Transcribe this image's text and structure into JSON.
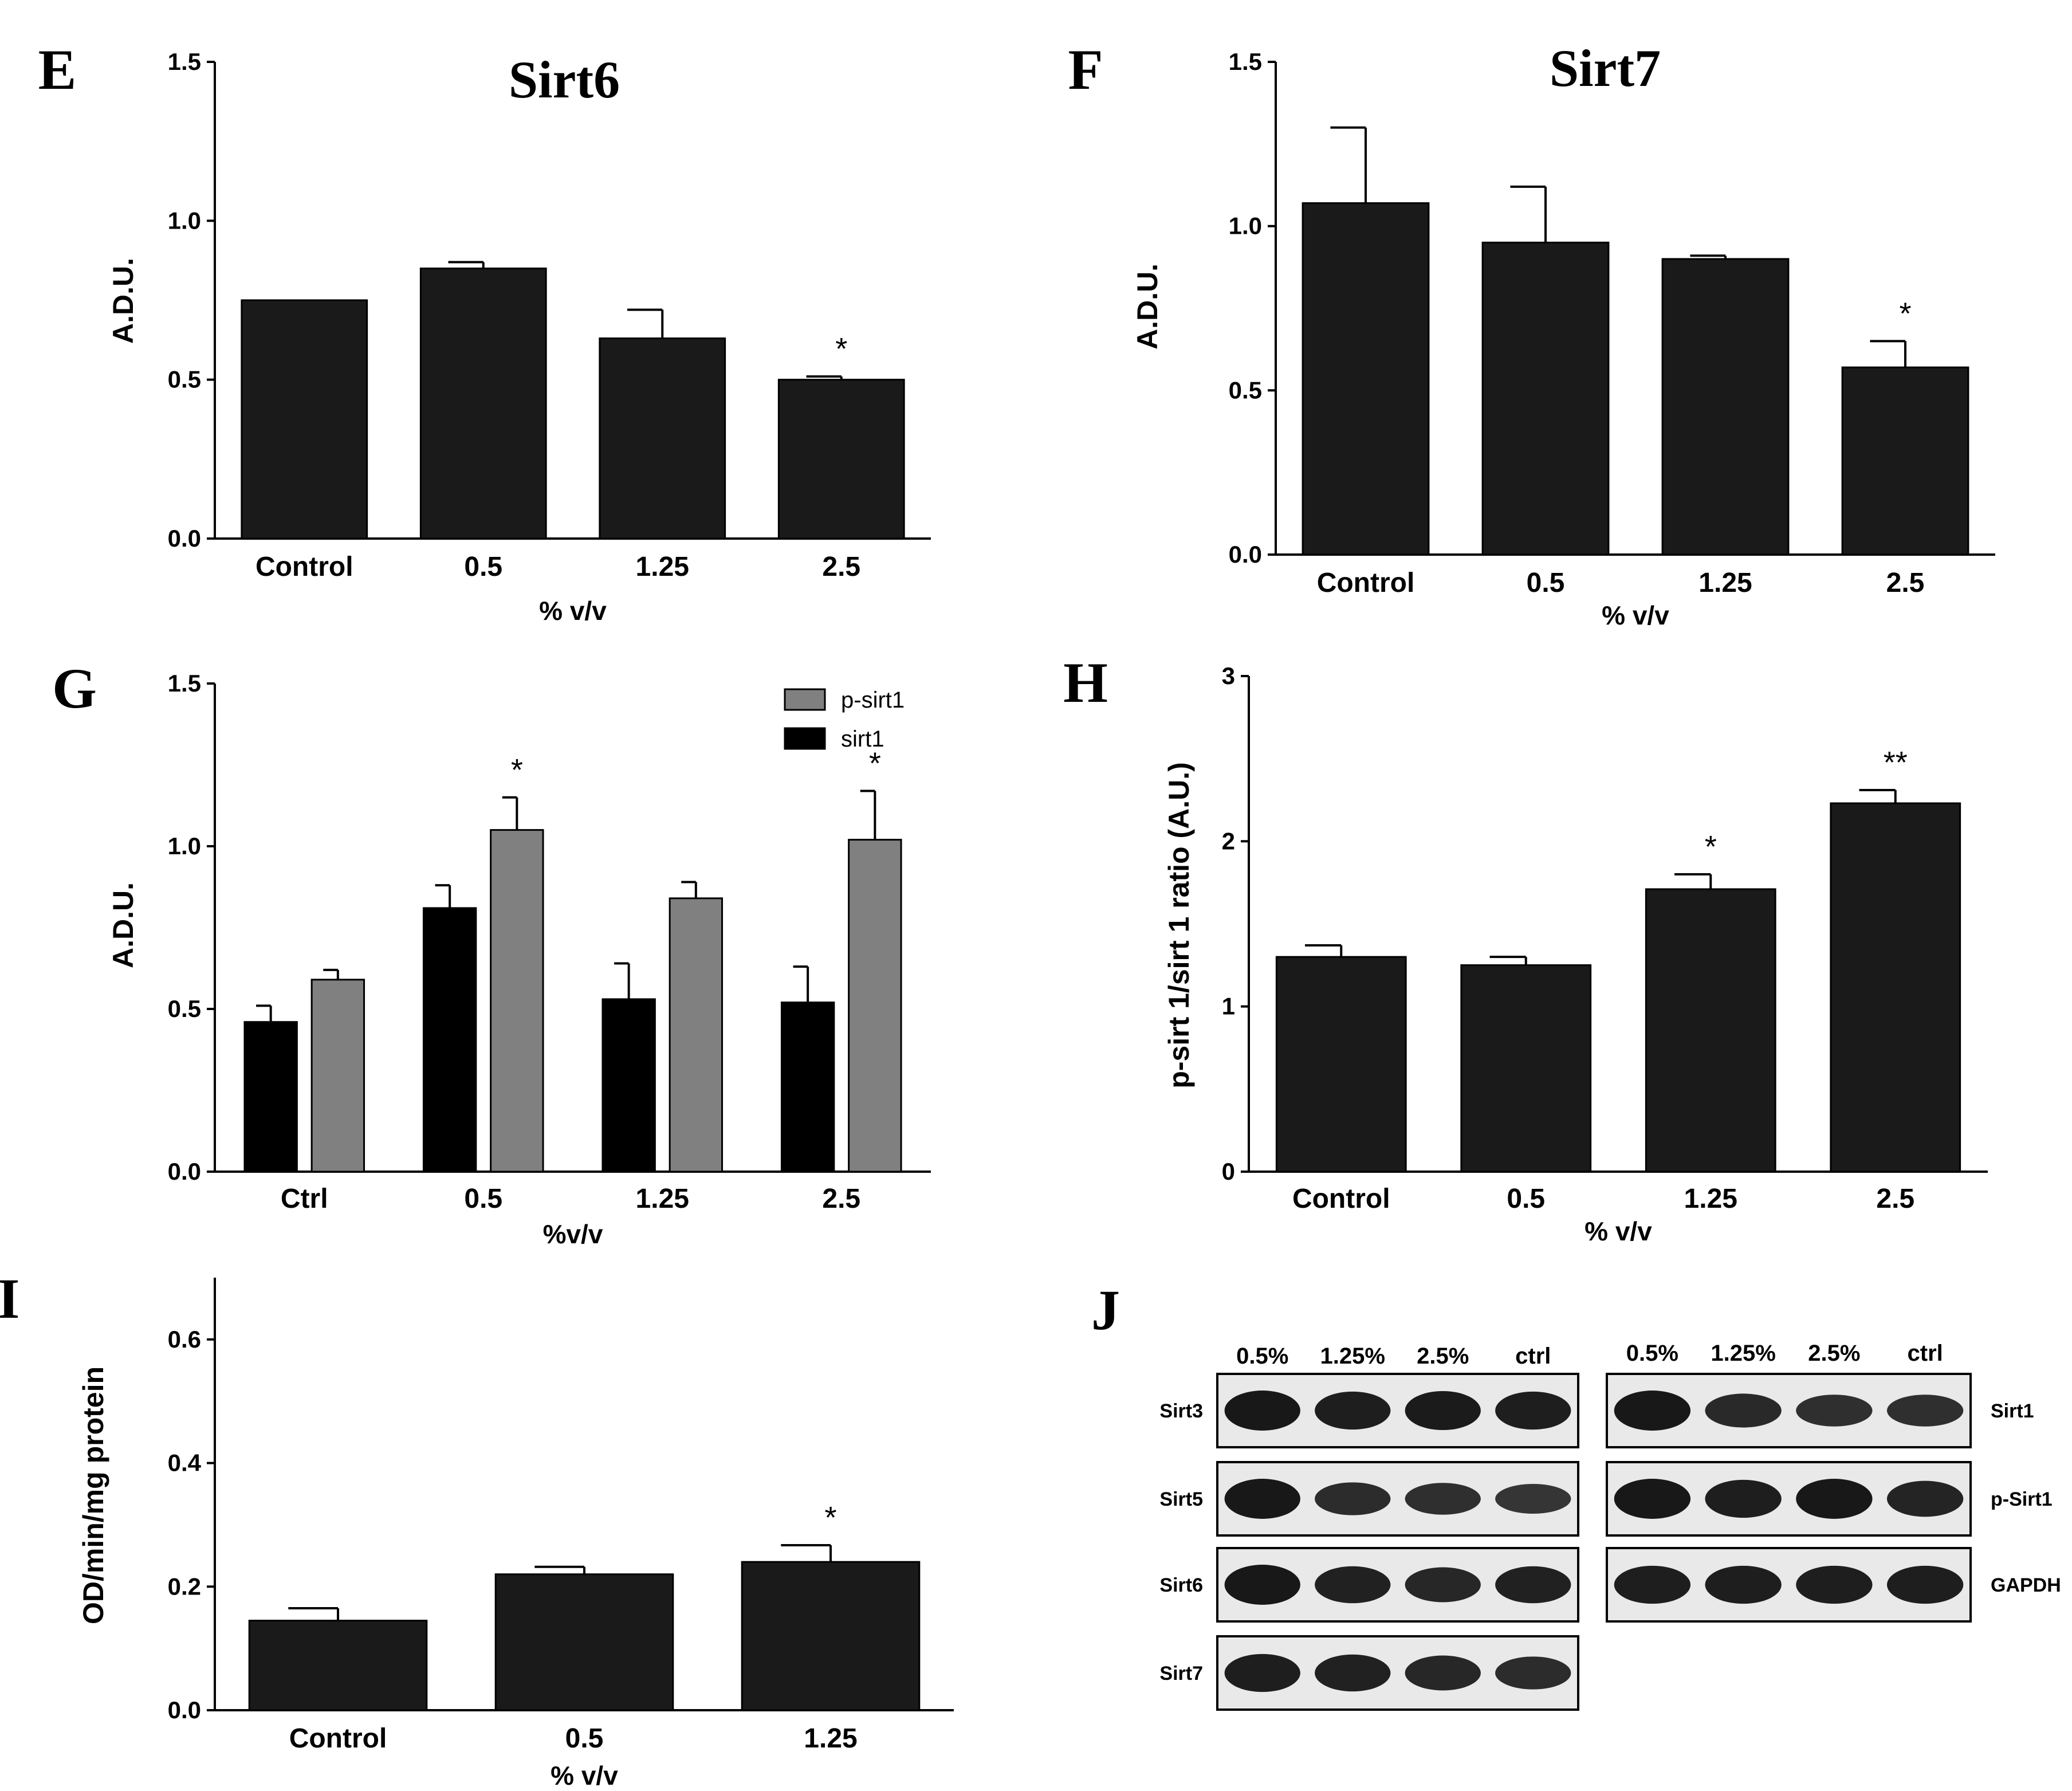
{
  "chart_data": [
    {
      "panel": "E",
      "type": "bar",
      "title": "Sirt6",
      "categories": [
        "Control",
        "0.5",
        "1.25",
        "2.5"
      ],
      "values": [
        0.75,
        0.85,
        0.63,
        0.5
      ],
      "errors": [
        0.0,
        0.02,
        0.09,
        0.01
      ],
      "annotations": [
        "",
        "",
        "",
        "*"
      ],
      "xlabel": "% v/v",
      "ylabel": "A.D.U.",
      "ylim": [
        0,
        1.5
      ],
      "yticks": [
        0.0,
        0.5,
        1.0,
        1.5
      ],
      "ytick_labels": [
        "0.0",
        "0.5",
        "1.0",
        "1.5"
      ]
    },
    {
      "panel": "F",
      "type": "bar",
      "title": "Sirt7",
      "categories": [
        "Control",
        "0.5",
        "1.25",
        "2.5"
      ],
      "values": [
        1.07,
        0.95,
        0.9,
        0.57
      ],
      "errors": [
        0.23,
        0.17,
        0.01,
        0.08
      ],
      "annotations": [
        "",
        "",
        "",
        "*"
      ],
      "xlabel": "% v/v",
      "ylabel": "A.D.U.",
      "ylim": [
        0,
        1.5
      ],
      "yticks": [
        0.0,
        0.5,
        1.0,
        1.5
      ],
      "ytick_labels": [
        "0.0",
        "0.5",
        "1.0",
        "1.5"
      ]
    },
    {
      "panel": "G",
      "type": "bar",
      "title": "",
      "categories": [
        "Ctrl",
        "0.5",
        "1.25",
        "2.5"
      ],
      "series": [
        {
          "name": "sirt1",
          "color": "#000000",
          "values": [
            0.46,
            0.81,
            0.53,
            0.52
          ],
          "errors": [
            0.05,
            0.07,
            0.11,
            0.11
          ],
          "annotations": [
            "",
            "",
            "",
            ""
          ]
        },
        {
          "name": "p-sirt1",
          "color": "#808080",
          "values": [
            0.59,
            1.05,
            0.84,
            1.02
          ],
          "errors": [
            0.03,
            0.1,
            0.05,
            0.15
          ],
          "annotations": [
            "",
            "*",
            "",
            "*"
          ]
        }
      ],
      "legend": [
        "p-sirt1",
        "sirt1"
      ],
      "legend_position": "top-right",
      "xlabel": "%v/v",
      "ylabel": "A.D.U.",
      "ylim": [
        0,
        1.5
      ],
      "yticks": [
        0.0,
        0.5,
        1.0,
        1.5
      ],
      "ytick_labels": [
        "0.0",
        "0.5",
        "1.0",
        "1.5"
      ]
    },
    {
      "panel": "H",
      "type": "bar",
      "title": "",
      "categories": [
        "Control",
        "0.5",
        "1.25",
        "2.5"
      ],
      "values": [
        1.3,
        1.25,
        1.71,
        2.23
      ],
      "errors": [
        0.07,
        0.05,
        0.09,
        0.08
      ],
      "annotations": [
        "",
        "",
        "*",
        "**"
      ],
      "xlabel": "% v/v",
      "ylabel": "p-sirt 1/sirt 1 ratio (A.U.)",
      "ylim": [
        0,
        3
      ],
      "yticks": [
        0,
        1,
        2,
        3
      ],
      "ytick_labels": [
        "0",
        "1",
        "2",
        "3"
      ]
    },
    {
      "panel": "I",
      "type": "bar",
      "title": "",
      "categories": [
        "Control",
        "0.5",
        "1.25"
      ],
      "values": [
        0.145,
        0.22,
        0.24
      ],
      "errors": [
        0.02,
        0.012,
        0.027
      ],
      "annotations": [
        "",
        "",
        "*"
      ],
      "xlabel": "% v/v",
      "ylabel": "OD/min/mg protein",
      "ylim": [
        0,
        0.7
      ],
      "yticks": [
        0.0,
        0.2,
        0.4,
        0.6
      ],
      "ytick_labels": [
        "0.0",
        "0.2",
        "0.4",
        "0.6"
      ]
    }
  ],
  "blot": {
    "panel": "J",
    "left_lanes": [
      "0.5%",
      "1.25%",
      "2.5%",
      "ctrl"
    ],
    "right_lanes": [
      "0.5%",
      "1.25%",
      "2.5%",
      "ctrl"
    ],
    "left_rows": [
      "Sirt3",
      "Sirt5",
      "Sirt6",
      "Sirt7"
    ],
    "right_rows": [
      "Sirt1",
      "p-Sirt1",
      "GAPDH"
    ],
    "left_intensity": [
      [
        0.95,
        0.85,
        0.9,
        0.85
      ],
      [
        0.95,
        0.6,
        0.55,
        0.45
      ],
      [
        0.95,
        0.8,
        0.7,
        0.8
      ],
      [
        0.85,
        0.8,
        0.7,
        0.6
      ]
    ],
    "right_intensity": [
      [
        0.95,
        0.65,
        0.55,
        0.55
      ],
      [
        0.95,
        0.85,
        0.95,
        0.75
      ],
      [
        0.85,
        0.85,
        0.85,
        0.85
      ]
    ]
  }
}
